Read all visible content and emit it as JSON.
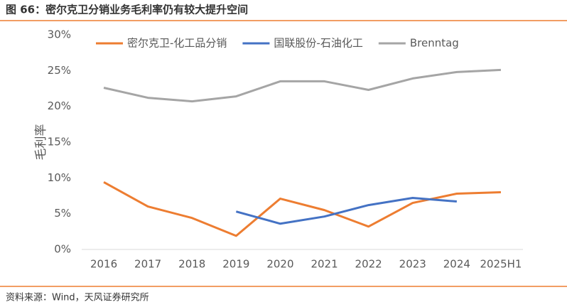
{
  "chart_data": {
    "type": "line",
    "title": "图 66：密尔克卫分销业务毛利率仍有较大提升空间",
    "source": "资料来源：Wind，天风证券研究所",
    "ylabel": "毛利率",
    "categories": [
      "2016",
      "2017",
      "2018",
      "2019",
      "2020",
      "2021",
      "2022",
      "2023",
      "2024",
      "2025H1"
    ],
    "series": [
      {
        "name": "密尔克卫-化工品分销",
        "color": "#ed7d31",
        "values": [
          9.4,
          6.0,
          4.4,
          1.9,
          7.1,
          5.5,
          3.2,
          6.5,
          7.8,
          8.0
        ]
      },
      {
        "name": "国联股份-石油化工",
        "color": "#4472c4",
        "values": [
          null,
          null,
          null,
          5.3,
          3.6,
          4.6,
          6.2,
          7.2,
          6.7,
          null
        ]
      },
      {
        "name": "Brenntag",
        "color": "#a5a5a5",
        "values": [
          22.6,
          21.2,
          20.7,
          21.4,
          23.5,
          23.5,
          22.3,
          23.9,
          24.8,
          25.1
        ]
      }
    ],
    "ylim": [
      0,
      30
    ],
    "yticks": [
      {
        "value": 0,
        "label": "0%"
      },
      {
        "value": 5,
        "label": "5%"
      },
      {
        "value": 10,
        "label": "10%"
      },
      {
        "value": 15,
        "label": "15%"
      },
      {
        "value": 20,
        "label": "20%"
      },
      {
        "value": 25,
        "label": "25%"
      },
      {
        "value": 30,
        "label": "30%"
      }
    ],
    "grid": false,
    "legend": "top"
  }
}
